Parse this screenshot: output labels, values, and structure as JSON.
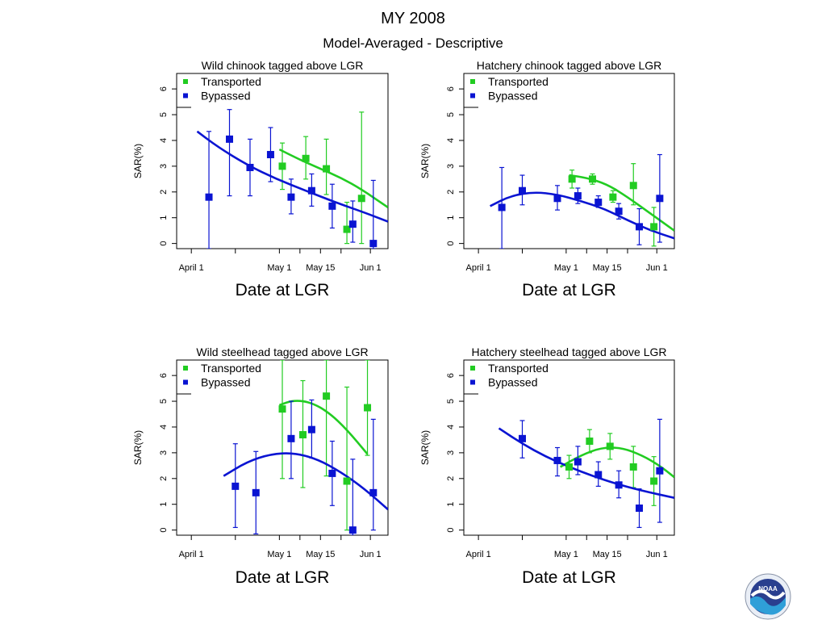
{
  "header": {
    "title": "MY 2008",
    "subtitle": "Model-Averaged - Descriptive"
  },
  "colors": {
    "transported": "#22cc22",
    "bypassed": "#0a14d2",
    "axis": "#000000"
  },
  "logo": {
    "name": "noaa-logo-icon",
    "text": "NOAA"
  },
  "chart_data": [
    {
      "type": "scatter",
      "title": "Wild chinook tagged above LGR",
      "xlabel": "Date at LGR",
      "ylabel": "SAR(%)",
      "xticks": [
        {
          "label": "April 1",
          "doy": 91
        },
        {
          "label": "May 1",
          "doy": 121
        },
        {
          "label": "May 15",
          "doy": 135
        },
        {
          "label": "Jun 1",
          "doy": 152
        }
      ],
      "xlim": [
        86,
        158
      ],
      "ylim": [
        -0.2,
        6.6
      ],
      "yticks": [
        0,
        1,
        2,
        3,
        4,
        5,
        6
      ],
      "legend": [
        "Transported",
        "Bypassed"
      ],
      "series": [
        {
          "name": "Transported",
          "color": "#22cc22",
          "points": [
            {
              "doy": 122,
              "y": 3.0,
              "lo": 2.1,
              "hi": 3.9
            },
            {
              "doy": 130,
              "y": 3.3,
              "lo": 2.5,
              "hi": 4.15
            },
            {
              "doy": 137,
              "y": 2.9,
              "lo": 1.9,
              "hi": 4.05
            },
            {
              "doy": 144,
              "y": 0.55,
              "lo": 0.0,
              "hi": 1.6
            },
            {
              "doy": 149,
              "y": 1.75,
              "lo": 0.0,
              "hi": 5.1
            }
          ],
          "curve": [
            [
              121,
              3.65
            ],
            [
              128,
              3.25
            ],
            [
              135,
              2.9
            ],
            [
              142,
              2.55
            ],
            [
              149,
              2.1
            ],
            [
              158,
              1.4
            ]
          ]
        },
        {
          "name": "Bypassed",
          "color": "#0a14d2",
          "points": [
            {
              "doy": 97,
              "y": 1.8,
              "lo": -0.2,
              "hi": 4.35
            },
            {
              "doy": 104,
              "y": 4.05,
              "lo": 1.85,
              "hi": 5.2
            },
            {
              "doy": 111,
              "y": 2.95,
              "lo": 1.85,
              "hi": 4.05
            },
            {
              "doy": 118,
              "y": 3.45,
              "lo": 2.4,
              "hi": 4.5
            },
            {
              "doy": 125,
              "y": 1.8,
              "lo": 1.15,
              "hi": 2.5
            },
            {
              "doy": 132,
              "y": 2.05,
              "lo": 1.45,
              "hi": 2.7
            },
            {
              "doy": 139,
              "y": 1.45,
              "lo": 0.6,
              "hi": 2.3
            },
            {
              "doy": 146,
              "y": 0.75,
              "lo": 0.05,
              "hi": 1.65
            },
            {
              "doy": 153,
              "y": 0.0,
              "lo": -0.2,
              "hi": 2.45
            }
          ],
          "curve": [
            [
              93,
              4.35
            ],
            [
              100,
              3.75
            ],
            [
              110,
              3.05
            ],
            [
              120,
              2.5
            ],
            [
              130,
              2.05
            ],
            [
              140,
              1.6
            ],
            [
              150,
              1.2
            ],
            [
              158,
              0.85
            ]
          ]
        }
      ]
    },
    {
      "type": "scatter",
      "title": "Hatchery chinook tagged above LGR",
      "xlabel": "Date at LGR",
      "ylabel": "SAR(%)",
      "xticks": [
        {
          "label": "April 1",
          "doy": 91
        },
        {
          "label": "May 1",
          "doy": 121
        },
        {
          "label": "May 15",
          "doy": 135
        },
        {
          "label": "Jun 1",
          "doy": 152
        }
      ],
      "xlim": [
        86,
        158
      ],
      "ylim": [
        -0.2,
        6.6
      ],
      "yticks": [
        0,
        1,
        2,
        3,
        4,
        5,
        6
      ],
      "legend": [
        "Transported",
        "Bypassed"
      ],
      "series": [
        {
          "name": "Transported",
          "color": "#22cc22",
          "points": [
            {
              "doy": 123,
              "y": 2.5,
              "lo": 2.15,
              "hi": 2.85
            },
            {
              "doy": 130,
              "y": 2.5,
              "lo": 2.3,
              "hi": 2.7
            },
            {
              "doy": 137,
              "y": 1.8,
              "lo": 1.6,
              "hi": 2.05
            },
            {
              "doy": 144,
              "y": 2.25,
              "lo": 1.5,
              "hi": 3.1
            },
            {
              "doy": 151,
              "y": 0.65,
              "lo": -0.1,
              "hi": 1.4
            }
          ],
          "curve": [
            [
              122,
              2.65
            ],
            [
              128,
              2.55
            ],
            [
              135,
              2.3
            ],
            [
              142,
              1.8
            ],
            [
              150,
              1.15
            ],
            [
              158,
              0.5
            ]
          ]
        },
        {
          "name": "Bypassed",
          "color": "#0a14d2",
          "points": [
            {
              "doy": 99,
              "y": 1.4,
              "lo": -0.2,
              "hi": 2.95
            },
            {
              "doy": 106,
              "y": 2.05,
              "lo": 1.5,
              "hi": 2.65
            },
            {
              "doy": 118,
              "y": 1.75,
              "lo": 1.3,
              "hi": 2.25
            },
            {
              "doy": 125,
              "y": 1.85,
              "lo": 1.55,
              "hi": 2.15
            },
            {
              "doy": 132,
              "y": 1.6,
              "lo": 1.4,
              "hi": 1.85
            },
            {
              "doy": 139,
              "y": 1.25,
              "lo": 0.95,
              "hi": 1.55
            },
            {
              "doy": 146,
              "y": 0.65,
              "lo": -0.05,
              "hi": 1.35
            },
            {
              "doy": 153,
              "y": 1.75,
              "lo": 0.05,
              "hi": 3.45
            }
          ],
          "curve": [
            [
              95,
              1.45
            ],
            [
              102,
              1.85
            ],
            [
              110,
              2.0
            ],
            [
              118,
              1.9
            ],
            [
              126,
              1.65
            ],
            [
              134,
              1.35
            ],
            [
              142,
              0.9
            ],
            [
              150,
              0.5
            ],
            [
              158,
              0.2
            ]
          ]
        }
      ]
    },
    {
      "type": "scatter",
      "title": "Wild steelhead tagged above LGR",
      "xlabel": "Date at LGR",
      "ylabel": "SAR(%)",
      "xticks": [
        {
          "label": "April 1",
          "doy": 91
        },
        {
          "label": "May 1",
          "doy": 121
        },
        {
          "label": "May 15",
          "doy": 135
        },
        {
          "label": "Jun 1",
          "doy": 152
        }
      ],
      "xlim": [
        86,
        158
      ],
      "ylim": [
        -0.2,
        6.6
      ],
      "yticks": [
        0,
        1,
        2,
        3,
        4,
        5,
        6
      ],
      "legend": [
        "Transported",
        "Bypassed"
      ],
      "series": [
        {
          "name": "Transported",
          "color": "#22cc22",
          "points": [
            {
              "doy": 122,
              "y": 4.7,
              "lo": 2.0,
              "hi": 6.6
            },
            {
              "doy": 129,
              "y": 3.7,
              "lo": 1.65,
              "hi": 5.8
            },
            {
              "doy": 137,
              "y": 5.2,
              "lo": 2.1,
              "hi": 6.6
            },
            {
              "doy": 144,
              "y": 1.9,
              "lo": 0.0,
              "hi": 5.55
            },
            {
              "doy": 151,
              "y": 4.75,
              "lo": 2.9,
              "hi": 6.6
            }
          ],
          "curve": [
            [
              121,
              4.85
            ],
            [
              126,
              5.05
            ],
            [
              132,
              4.95
            ],
            [
              138,
              4.55
            ],
            [
              144,
              3.9
            ],
            [
              151,
              2.95
            ]
          ]
        },
        {
          "name": "Bypassed",
          "color": "#0a14d2",
          "points": [
            {
              "doy": 106,
              "y": 1.7,
              "lo": 0.1,
              "hi": 3.35
            },
            {
              "doy": 113,
              "y": 1.45,
              "lo": -0.15,
              "hi": 3.05
            },
            {
              "doy": 125,
              "y": 3.55,
              "lo": 2.0,
              "hi": 5.0
            },
            {
              "doy": 132,
              "y": 3.9,
              "lo": 2.8,
              "hi": 5.05
            },
            {
              "doy": 139,
              "y": 2.2,
              "lo": 0.95,
              "hi": 3.45
            },
            {
              "doy": 146,
              "y": 0.0,
              "lo": -0.2,
              "hi": 2.75
            },
            {
              "doy": 153,
              "y": 1.45,
              "lo": 0.0,
              "hi": 4.3
            }
          ],
          "curve": [
            [
              102,
              2.1
            ],
            [
              110,
              2.65
            ],
            [
              118,
              2.95
            ],
            [
              126,
              3.0
            ],
            [
              134,
              2.75
            ],
            [
              142,
              2.25
            ],
            [
              150,
              1.6
            ],
            [
              158,
              0.8
            ]
          ]
        }
      ]
    },
    {
      "type": "scatter",
      "title": "Hatchery steelhead tagged above LGR",
      "xlabel": "Date at LGR",
      "ylabel": "SAR(%)",
      "xticks": [
        {
          "label": "April 1",
          "doy": 91
        },
        {
          "label": "May 1",
          "doy": 121
        },
        {
          "label": "May 15",
          "doy": 135
        },
        {
          "label": "Jun 1",
          "doy": 152
        }
      ],
      "xlim": [
        86,
        158
      ],
      "ylim": [
        -0.2,
        6.6
      ],
      "yticks": [
        0,
        1,
        2,
        3,
        4,
        5,
        6
      ],
      "legend": [
        "Transported",
        "Bypassed"
      ],
      "series": [
        {
          "name": "Transported",
          "color": "#22cc22",
          "points": [
            {
              "doy": 122,
              "y": 2.45,
              "lo": 2.0,
              "hi": 2.9
            },
            {
              "doy": 129,
              "y": 3.45,
              "lo": 3.0,
              "hi": 3.9
            },
            {
              "doy": 136,
              "y": 3.25,
              "lo": 2.75,
              "hi": 3.75
            },
            {
              "doy": 144,
              "y": 2.45,
              "lo": 1.65,
              "hi": 3.25
            },
            {
              "doy": 151,
              "y": 1.9,
              "lo": 0.95,
              "hi": 2.85
            }
          ],
          "curve": [
            [
              119,
              2.45
            ],
            [
              126,
              2.9
            ],
            [
              133,
              3.2
            ],
            [
              140,
              3.2
            ],
            [
              147,
              2.9
            ],
            [
              153,
              2.5
            ],
            [
              158,
              2.05
            ]
          ]
        },
        {
          "name": "Bypassed",
          "color": "#0a14d2",
          "points": [
            {
              "doy": 106,
              "y": 3.55,
              "lo": 2.8,
              "hi": 4.25
            },
            {
              "doy": 118,
              "y": 2.7,
              "lo": 2.1,
              "hi": 3.2
            },
            {
              "doy": 125,
              "y": 2.65,
              "lo": 2.15,
              "hi": 3.25
            },
            {
              "doy": 132,
              "y": 2.15,
              "lo": 1.7,
              "hi": 2.65
            },
            {
              "doy": 139,
              "y": 1.75,
              "lo": 1.25,
              "hi": 2.3
            },
            {
              "doy": 146,
              "y": 0.85,
              "lo": 0.1,
              "hi": 1.6
            },
            {
              "doy": 153,
              "y": 2.3,
              "lo": 0.3,
              "hi": 4.3
            }
          ],
          "curve": [
            [
              98,
              3.95
            ],
            [
              106,
              3.35
            ],
            [
              114,
              2.85
            ],
            [
              122,
              2.45
            ],
            [
              130,
              2.1
            ],
            [
              138,
              1.8
            ],
            [
              146,
              1.55
            ],
            [
              158,
              1.25
            ]
          ]
        }
      ]
    }
  ]
}
